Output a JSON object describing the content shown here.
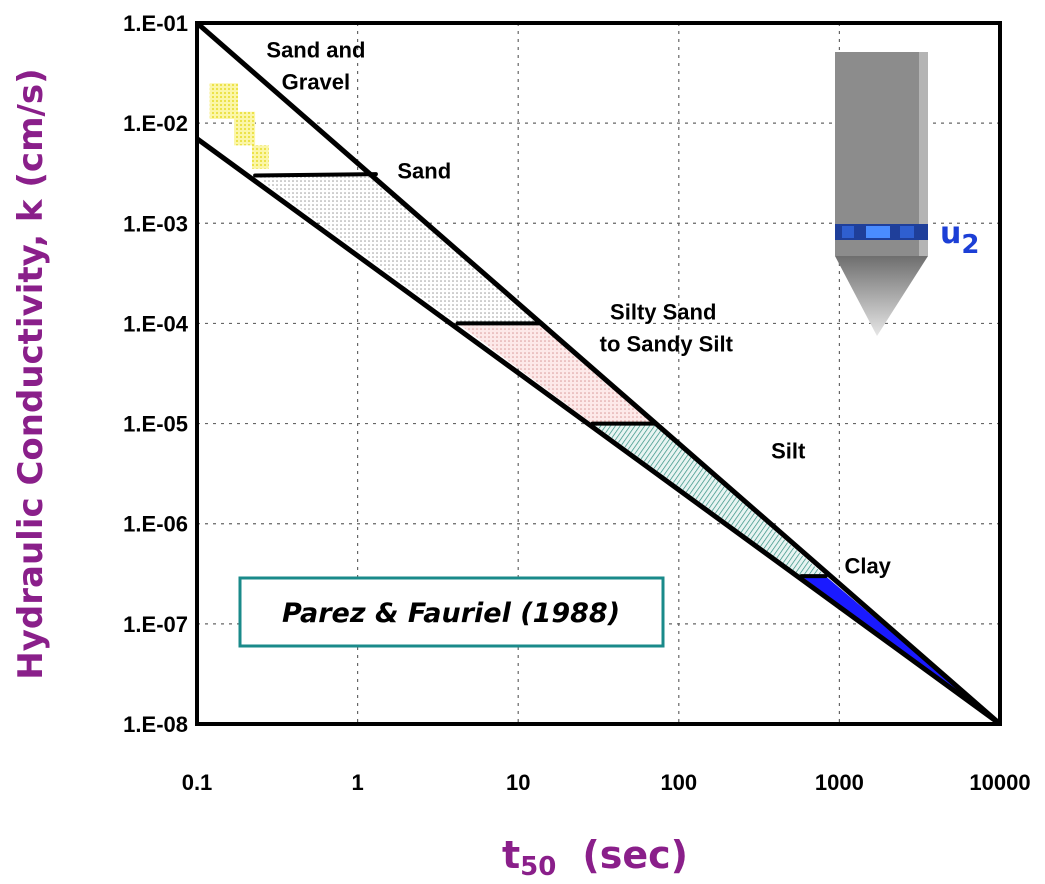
{
  "chart_data": {
    "type": "area",
    "xlabel": "t",
    "xlabel_sub": "50",
    "xlabel_unit": "(sec)",
    "ylabel": "Hydraulic Conductivity, k (cm/s)",
    "x_scale": "log",
    "y_scale": "log",
    "xlim": [
      0.1,
      10000
    ],
    "ylim": [
      1e-08,
      0.1
    ],
    "grid": true,
    "x_ticks": [
      0.1,
      1,
      10,
      100,
      1000,
      10000
    ],
    "x_tick_labels": [
      "0.1",
      "1",
      "10",
      "100",
      "1000",
      "10000"
    ],
    "y_ticks": [
      1e-08,
      1e-07,
      1e-06,
      1e-05,
      0.0001,
      0.001,
      0.01,
      0.1
    ],
    "y_tick_labels": [
      "1.E-08",
      "1.E-07",
      "1.E-06",
      "1.E-05",
      "1.E-04",
      "1.E-03",
      "1.E-02",
      "1.E-01"
    ],
    "series": [
      {
        "x": [
          0.1,
          10000
        ],
        "y": [
          0.1,
          1e-08
        ]
      },
      {
        "x": [
          0.1,
          10000
        ],
        "y": [
          0.007,
          1e-08
        ]
      }
    ],
    "zones": [
      {
        "label": "Sand and Gravel",
        "color": "#f5f07a",
        "polygon": [
          [
            0.12,
            0.025
          ],
          [
            0.18,
            0.025
          ],
          [
            0.18,
            0.013
          ],
          [
            0.23,
            0.013
          ],
          [
            0.23,
            0.006
          ],
          [
            0.28,
            0.006
          ],
          [
            0.28,
            0.0035
          ],
          [
            0.22,
            0.0035
          ],
          [
            0.22,
            0.006
          ],
          [
            0.17,
            0.006
          ],
          [
            0.17,
            0.011
          ],
          [
            0.12,
            0.011
          ]
        ]
      },
      {
        "label": "Sand",
        "color": "#e8e8e8",
        "polygon": [
          [
            0.23,
            0.003
          ],
          [
            1.3,
            0.003
          ],
          [
            14,
            0.0001
          ],
          [
            4.2,
            0.0001
          ]
        ]
      },
      {
        "label": "Silty Sand to Sandy Silt",
        "color": "#f7dede",
        "polygon": [
          [
            4.2,
            0.0001
          ],
          [
            14,
            0.0001
          ],
          [
            70,
            1e-05
          ],
          [
            29,
            1e-05
          ]
        ]
      },
      {
        "label": "Silt",
        "color": "#bfe3dd",
        "polygon": [
          [
            29,
            1e-05
          ],
          [
            70,
            1e-05
          ],
          [
            820,
            3e-07
          ],
          [
            580,
            3e-07
          ]
        ]
      },
      {
        "label": "Clay",
        "color": "#1a1aff",
        "polygon": [
          [
            580,
            3e-07
          ],
          [
            820,
            3e-07
          ],
          [
            10000,
            1e-08
          ]
        ]
      }
    ],
    "boundaries": [
      {
        "x": [
          0.23,
          1.3
        ],
        "y": [
          0.003,
          0.0031
        ]
      },
      {
        "x": [
          4.2,
          14
        ],
        "y": [
          0.0001,
          0.0001
        ]
      },
      {
        "x": [
          29,
          70
        ],
        "y": [
          1e-05,
          1e-05
        ]
      },
      {
        "x": [
          580,
          820
        ],
        "y": [
          3e-07,
          3e-07
        ]
      }
    ],
    "zone_labels": [
      {
        "lines": [
          "Sand and",
          "Gravel"
        ],
        "x": 0.55,
        "y": 0.045
      },
      {
        "lines": [
          "Sand"
        ],
        "x": 2.6,
        "y": 0.0028
      },
      {
        "lines": [
          "Silty Sand",
          " to Sandy Silt"
        ],
        "x": 80,
        "y": 0.00011
      },
      {
        "lines": [
          "Silt"
        ],
        "x": 480,
        "y": 4.5e-06
      },
      {
        "lines": [
          "Clay"
        ],
        "x": 1500,
        "y": 3.2e-07
      }
    ],
    "annotation": "Parez & Fauriel (1988)",
    "probe_label": "u",
    "probe_label_sub": "2"
  },
  "colors": {
    "axis_label": "#8a1f8a",
    "probe_label": "#1c3fd6",
    "annotation_border": "#1a8a8a",
    "probe_body": "#8c8c8c",
    "probe_filter": "#2255ee"
  }
}
